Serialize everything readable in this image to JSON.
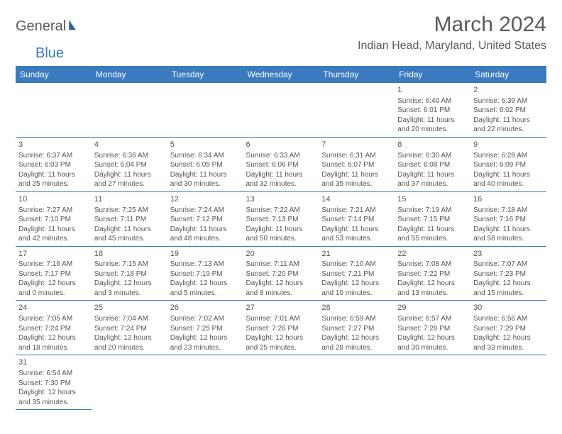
{
  "logo": {
    "text1": "General",
    "text2": "Blue"
  },
  "header": {
    "month_title": "March 2024",
    "location": "Indian Head, Maryland, United States"
  },
  "colors": {
    "header_bg": "#3a7bbf",
    "header_fg": "#ffffff",
    "cell_border": "#3a7bbf",
    "text": "#555555"
  },
  "day_names": [
    "Sunday",
    "Monday",
    "Tuesday",
    "Wednesday",
    "Thursday",
    "Friday",
    "Saturday"
  ],
  "weeks": [
    [
      null,
      null,
      null,
      null,
      null,
      {
        "n": "1",
        "sr": "Sunrise: 6:40 AM",
        "ss": "Sunset: 6:01 PM",
        "d1": "Daylight: 11 hours",
        "d2": "and 20 minutes."
      },
      {
        "n": "2",
        "sr": "Sunrise: 6:39 AM",
        "ss": "Sunset: 6:02 PM",
        "d1": "Daylight: 11 hours",
        "d2": "and 22 minutes."
      }
    ],
    [
      {
        "n": "3",
        "sr": "Sunrise: 6:37 AM",
        "ss": "Sunset: 6:03 PM",
        "d1": "Daylight: 11 hours",
        "d2": "and 25 minutes."
      },
      {
        "n": "4",
        "sr": "Sunrise: 6:36 AM",
        "ss": "Sunset: 6:04 PM",
        "d1": "Daylight: 11 hours",
        "d2": "and 27 minutes."
      },
      {
        "n": "5",
        "sr": "Sunrise: 6:34 AM",
        "ss": "Sunset: 6:05 PM",
        "d1": "Daylight: 11 hours",
        "d2": "and 30 minutes."
      },
      {
        "n": "6",
        "sr": "Sunrise: 6:33 AM",
        "ss": "Sunset: 6:06 PM",
        "d1": "Daylight: 11 hours",
        "d2": "and 32 minutes."
      },
      {
        "n": "7",
        "sr": "Sunrise: 6:31 AM",
        "ss": "Sunset: 6:07 PM",
        "d1": "Daylight: 11 hours",
        "d2": "and 35 minutes."
      },
      {
        "n": "8",
        "sr": "Sunrise: 6:30 AM",
        "ss": "Sunset: 6:08 PM",
        "d1": "Daylight: 11 hours",
        "d2": "and 37 minutes."
      },
      {
        "n": "9",
        "sr": "Sunrise: 6:28 AM",
        "ss": "Sunset: 6:09 PM",
        "d1": "Daylight: 11 hours",
        "d2": "and 40 minutes."
      }
    ],
    [
      {
        "n": "10",
        "sr": "Sunrise: 7:27 AM",
        "ss": "Sunset: 7:10 PM",
        "d1": "Daylight: 11 hours",
        "d2": "and 42 minutes."
      },
      {
        "n": "11",
        "sr": "Sunrise: 7:25 AM",
        "ss": "Sunset: 7:11 PM",
        "d1": "Daylight: 11 hours",
        "d2": "and 45 minutes."
      },
      {
        "n": "12",
        "sr": "Sunrise: 7:24 AM",
        "ss": "Sunset: 7:12 PM",
        "d1": "Daylight: 11 hours",
        "d2": "and 48 minutes."
      },
      {
        "n": "13",
        "sr": "Sunrise: 7:22 AM",
        "ss": "Sunset: 7:13 PM",
        "d1": "Daylight: 11 hours",
        "d2": "and 50 minutes."
      },
      {
        "n": "14",
        "sr": "Sunrise: 7:21 AM",
        "ss": "Sunset: 7:14 PM",
        "d1": "Daylight: 11 hours",
        "d2": "and 53 minutes."
      },
      {
        "n": "15",
        "sr": "Sunrise: 7:19 AM",
        "ss": "Sunset: 7:15 PM",
        "d1": "Daylight: 11 hours",
        "d2": "and 55 minutes."
      },
      {
        "n": "16",
        "sr": "Sunrise: 7:18 AM",
        "ss": "Sunset: 7:16 PM",
        "d1": "Daylight: 11 hours",
        "d2": "and 58 minutes."
      }
    ],
    [
      {
        "n": "17",
        "sr": "Sunrise: 7:16 AM",
        "ss": "Sunset: 7:17 PM",
        "d1": "Daylight: 12 hours",
        "d2": "and 0 minutes."
      },
      {
        "n": "18",
        "sr": "Sunrise: 7:15 AM",
        "ss": "Sunset: 7:18 PM",
        "d1": "Daylight: 12 hours",
        "d2": "and 3 minutes."
      },
      {
        "n": "19",
        "sr": "Sunrise: 7:13 AM",
        "ss": "Sunset: 7:19 PM",
        "d1": "Daylight: 12 hours",
        "d2": "and 5 minutes."
      },
      {
        "n": "20",
        "sr": "Sunrise: 7:11 AM",
        "ss": "Sunset: 7:20 PM",
        "d1": "Daylight: 12 hours",
        "d2": "and 8 minutes."
      },
      {
        "n": "21",
        "sr": "Sunrise: 7:10 AM",
        "ss": "Sunset: 7:21 PM",
        "d1": "Daylight: 12 hours",
        "d2": "and 10 minutes."
      },
      {
        "n": "22",
        "sr": "Sunrise: 7:08 AM",
        "ss": "Sunset: 7:22 PM",
        "d1": "Daylight: 12 hours",
        "d2": "and 13 minutes."
      },
      {
        "n": "23",
        "sr": "Sunrise: 7:07 AM",
        "ss": "Sunset: 7:23 PM",
        "d1": "Daylight: 12 hours",
        "d2": "and 15 minutes."
      }
    ],
    [
      {
        "n": "24",
        "sr": "Sunrise: 7:05 AM",
        "ss": "Sunset: 7:24 PM",
        "d1": "Daylight: 12 hours",
        "d2": "and 18 minutes."
      },
      {
        "n": "25",
        "sr": "Sunrise: 7:04 AM",
        "ss": "Sunset: 7:24 PM",
        "d1": "Daylight: 12 hours",
        "d2": "and 20 minutes."
      },
      {
        "n": "26",
        "sr": "Sunrise: 7:02 AM",
        "ss": "Sunset: 7:25 PM",
        "d1": "Daylight: 12 hours",
        "d2": "and 23 minutes."
      },
      {
        "n": "27",
        "sr": "Sunrise: 7:01 AM",
        "ss": "Sunset: 7:26 PM",
        "d1": "Daylight: 12 hours",
        "d2": "and 25 minutes."
      },
      {
        "n": "28",
        "sr": "Sunrise: 6:59 AM",
        "ss": "Sunset: 7:27 PM",
        "d1": "Daylight: 12 hours",
        "d2": "and 28 minutes."
      },
      {
        "n": "29",
        "sr": "Sunrise: 6:57 AM",
        "ss": "Sunset: 7:28 PM",
        "d1": "Daylight: 12 hours",
        "d2": "and 30 minutes."
      },
      {
        "n": "30",
        "sr": "Sunrise: 6:56 AM",
        "ss": "Sunset: 7:29 PM",
        "d1": "Daylight: 12 hours",
        "d2": "and 33 minutes."
      }
    ],
    [
      {
        "n": "31",
        "sr": "Sunrise: 6:54 AM",
        "ss": "Sunset: 7:30 PM",
        "d1": "Daylight: 12 hours",
        "d2": "and 35 minutes."
      },
      null,
      null,
      null,
      null,
      null,
      null
    ]
  ]
}
